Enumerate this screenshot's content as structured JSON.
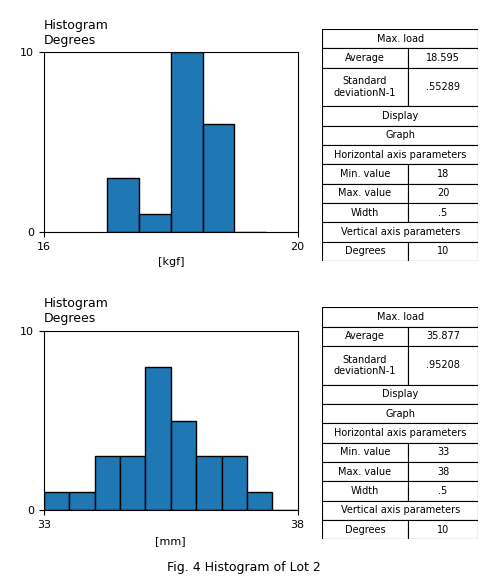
{
  "chart_data": [
    {
      "type": "histogram",
      "title": "Histogram\nDegrees",
      "x_label": "[kgf]",
      "bins": [
        17.0,
        17.5,
        18.0,
        18.5,
        19.0,
        19.5
      ],
      "counts": [
        3,
        1,
        10,
        6,
        0
      ],
      "xlim": [
        16,
        20
      ],
      "xticks": [
        16,
        20
      ],
      "ylim": [
        0,
        10
      ],
      "yticks": [
        0,
        10
      ],
      "grid": true,
      "annotations": [
        [
          "Max. load"
        ],
        [
          "Average",
          "18.595"
        ],
        [
          "Standard\ndeviationN-1",
          ".55289"
        ],
        [
          "Display"
        ],
        [
          "Graph"
        ],
        [
          "Horizontal axis parameters"
        ],
        [
          "Min. value",
          "18"
        ],
        [
          "Max. value",
          "20"
        ],
        [
          "Width",
          ".5"
        ],
        [
          "Vertical axis parameters"
        ],
        [
          "Degrees",
          "10"
        ]
      ]
    },
    {
      "type": "histogram",
      "title": "Histogram\nDegrees",
      "x_label": "[mm]",
      "bins": [
        33.0,
        33.5,
        34.0,
        34.5,
        35.0,
        35.5,
        36.0,
        36.5,
        37.0,
        37.5,
        38.0
      ],
      "counts": [
        1,
        1,
        3,
        3,
        8,
        5,
        3,
        3,
        1,
        0
      ],
      "xlim": [
        33,
        38
      ],
      "xticks": [
        33,
        38
      ],
      "ylim": [
        0,
        10
      ],
      "yticks": [
        0,
        10
      ],
      "grid": true,
      "annotations": [
        [
          "Max. load"
        ],
        [
          "Average",
          "35.877"
        ],
        [
          "Standard\ndeviationN-1",
          ".95208"
        ],
        [
          "Display"
        ],
        [
          "Graph"
        ],
        [
          "Horizontal axis parameters"
        ],
        [
          "Min. value",
          "33"
        ],
        [
          "Max. value",
          "38"
        ],
        [
          "Width",
          ".5"
        ],
        [
          "Vertical axis parameters"
        ],
        [
          "Degrees",
          "10"
        ]
      ]
    }
  ],
  "caption": "Fig. 4 Histogram of Lot 2"
}
